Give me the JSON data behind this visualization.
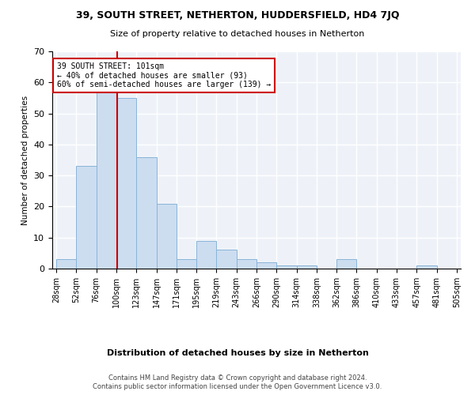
{
  "title": "39, SOUTH STREET, NETHERTON, HUDDERSFIELD, HD4 7JQ",
  "subtitle": "Size of property relative to detached houses in Netherton",
  "xlabel": "Distribution of detached houses by size in Netherton",
  "ylabel": "Number of detached properties",
  "bar_color": "#ccddf0",
  "bar_edge_color": "#8ab4d8",
  "bar_heights": [
    3,
    33,
    58,
    55,
    36,
    21,
    3,
    9,
    6,
    3,
    2,
    1,
    1,
    0,
    3,
    0,
    0,
    0,
    1,
    0
  ],
  "bin_labels": [
    "28sqm",
    "52sqm",
    "76sqm",
    "100sqm",
    "123sqm",
    "147sqm",
    "171sqm",
    "195sqm",
    "219sqm",
    "243sqm",
    "266sqm",
    "290sqm",
    "314sqm",
    "338sqm",
    "362sqm",
    "386sqm",
    "410sqm",
    "433sqm",
    "457sqm",
    "481sqm",
    "505sqm"
  ],
  "n_bins": 20,
  "property_bin_idx": 3,
  "annotation_line1": "39 SOUTH STREET: 101sqm",
  "annotation_line2": "← 40% of detached houses are smaller (93)",
  "annotation_line3": "60% of semi-detached houses are larger (139) →",
  "vline_color": "#cc0000",
  "vline_x_idx": 3.04,
  "ylim": [
    0,
    70
  ],
  "yticks": [
    0,
    10,
    20,
    30,
    40,
    50,
    60,
    70
  ],
  "background_color": "#eef2f8",
  "grid_color": "#ffffff",
  "title_fontsize": 9,
  "subtitle_fontsize": 8,
  "footer1": "Contains HM Land Registry data © Crown copyright and database right 2024.",
  "footer2": "Contains public sector information licensed under the Open Government Licence v3.0."
}
